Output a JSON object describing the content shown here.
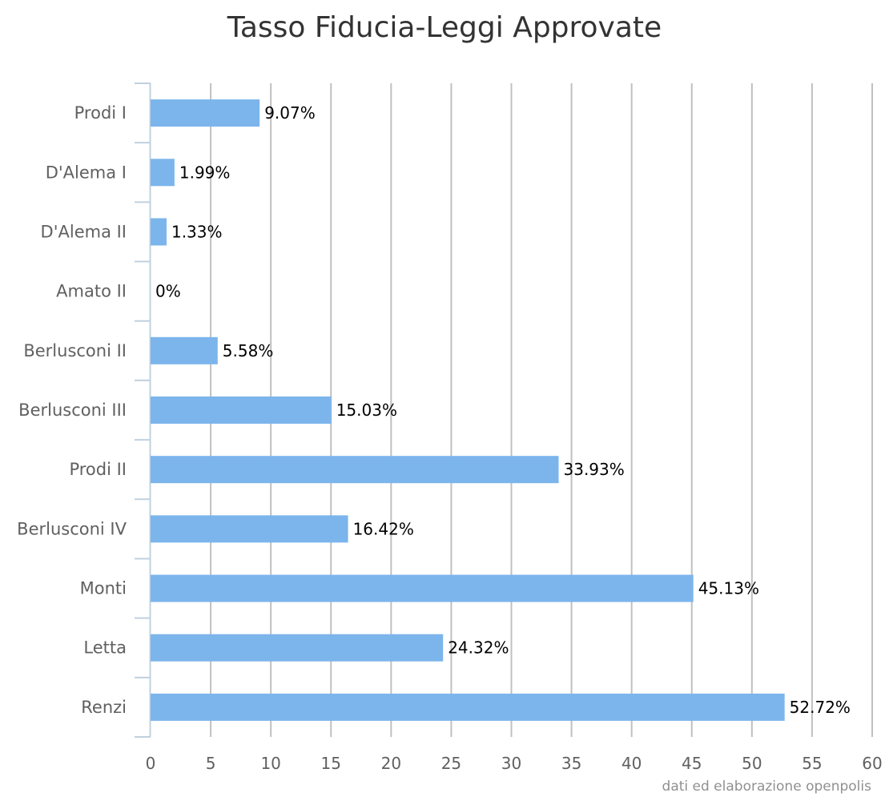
{
  "chart_data": {
    "type": "bar",
    "orientation": "horizontal",
    "title": "Tasso Fiducia-Leggi Approvate",
    "categories": [
      "Prodi I",
      "D'Alema I",
      "D'Alema II",
      "Amato II",
      "Berlusconi II",
      "Berlusconi III",
      "Prodi II",
      "Berlusconi IV",
      "Monti",
      "Letta",
      "Renzi"
    ],
    "values": [
      9.07,
      1.99,
      1.33,
      0,
      5.58,
      15.03,
      33.93,
      16.42,
      45.13,
      24.32,
      52.72
    ],
    "data_labels": [
      "9.07%",
      "1.99%",
      "1.33%",
      "0%",
      "5.58%",
      "15.03%",
      "33.93%",
      "16.42%",
      "45.13%",
      "24.32%",
      "52.72%"
    ],
    "xlim": [
      0,
      60
    ],
    "ticks": [
      0,
      5,
      10,
      15,
      20,
      25,
      30,
      35,
      40,
      45,
      50,
      55,
      60
    ],
    "xlabel": "",
    "ylabel": "",
    "grid": true,
    "legend": "none",
    "bar_color": "#7cb5ec",
    "grid_color": "#c0c0c0",
    "axis_color": "#c0d0e0"
  },
  "credit": "dati ed elaborazione openpolis"
}
